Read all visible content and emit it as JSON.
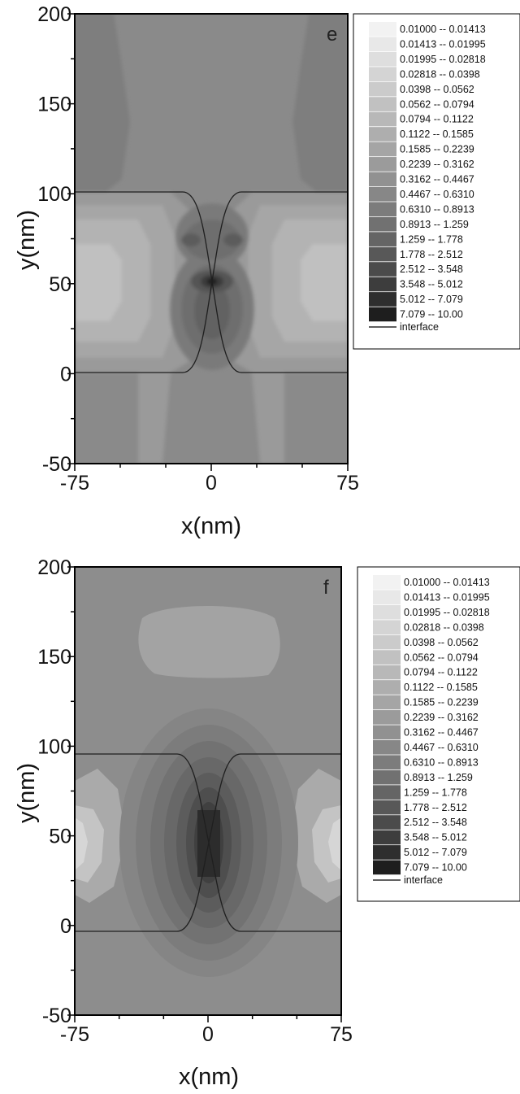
{
  "legend_items": [
    "0.01000  --  0.01413",
    "0.01413  --  0.01995",
    "0.01995  --  0.02818",
    "0.02818  --  0.0398",
    "0.0398  --  0.0562",
    "0.0562  --  0.0794",
    "0.0794  --  0.1122",
    "0.1122  --  0.1585",
    "0.1585  --  0.2239",
    "0.2239  --  0.3162",
    "0.3162  --  0.4467",
    "0.4467  --  0.6310",
    "0.6310  --  0.8913",
    "0.8913  --  1.259",
    "1.259  --  1.778",
    "1.778  --  2.512",
    "2.512  --  3.548",
    "3.548  --  5.012",
    "5.012  --  7.079",
    "7.079  --  10.00"
  ],
  "legend_swatch_colors": [
    "#f2f2f2",
    "#e8e8e8",
    "#dedede",
    "#d4d4d4",
    "#cbcbcb",
    "#c1c1c1",
    "#b8b8b8",
    "#aeaeae",
    "#a5a5a5",
    "#9b9b9b",
    "#919191",
    "#878787",
    "#7c7c7c",
    "#717171",
    "#656565",
    "#585858",
    "#4b4b4b",
    "#3d3d3d",
    "#2e2e2e",
    "#1e1e1e"
  ],
  "legend_line_label": "interface",
  "chart_data": [
    {
      "type": "heatmap",
      "panel_label": "e",
      "xlabel": "x(nm)",
      "ylabel": "y(nm)",
      "xlim": [
        -75,
        75
      ],
      "ylim": [
        -50,
        200
      ],
      "xticks": [
        "-75",
        "0",
        "75"
      ],
      "yticks": [
        "200",
        "150",
        "100",
        "50",
        "0",
        "-50"
      ],
      "contour_levels": [
        0.01,
        0.01413,
        0.01995,
        0.02818,
        0.0398,
        0.0562,
        0.0794,
        0.1122,
        0.1585,
        0.2239,
        0.3162,
        0.4467,
        0.631,
        0.8913,
        1.259,
        1.778,
        2.512,
        3.548,
        5.012,
        7.079,
        10.0
      ],
      "interface": {
        "y_low": 0,
        "y_high": 102,
        "touch_point": [
          0,
          51
        ]
      },
      "field_centers": [
        {
          "x": 0,
          "y": 51,
          "peak": 10
        },
        {
          "x": 0,
          "y": 35,
          "peak": 0.89
        },
        {
          "x": 0,
          "y": 75,
          "peak": 0.89
        }
      ]
    },
    {
      "type": "heatmap",
      "panel_label": "f",
      "xlabel": "x(nm)",
      "ylabel": "y(nm)",
      "xlim": [
        -75,
        75
      ],
      "ylim": [
        -50,
        200
      ],
      "xticks": [
        "-75",
        "0",
        "75"
      ],
      "yticks": [
        "200",
        "150",
        "100",
        "50",
        "0",
        "-50"
      ],
      "contour_levels": [
        0.01,
        0.01413,
        0.01995,
        0.02818,
        0.0398,
        0.0562,
        0.0794,
        0.1122,
        0.1585,
        0.2239,
        0.3162,
        0.4467,
        0.631,
        0.8913,
        1.259,
        1.778,
        2.512,
        3.548,
        5.012,
        7.079,
        10.0
      ],
      "interface": {
        "y_low": 0,
        "y_high": 102,
        "touch_point": [
          0,
          51
        ]
      },
      "field_centers": [
        {
          "x": 0,
          "y": 51,
          "peak": 7.079
        }
      ]
    }
  ]
}
